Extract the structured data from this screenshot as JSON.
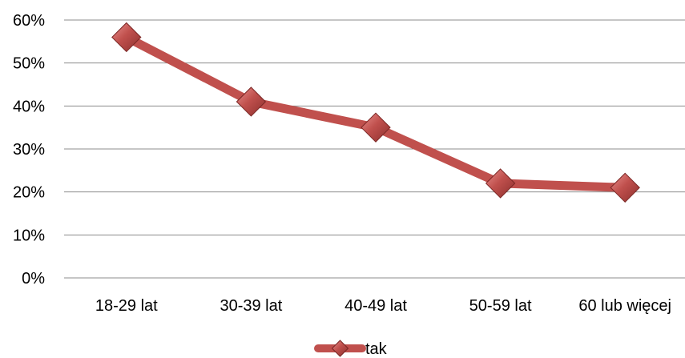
{
  "chart_data": {
    "type": "line",
    "title": "",
    "xlabel": "",
    "ylabel": "",
    "categories": [
      "18-29 lat",
      "30-39 lat",
      "40-49 lat",
      "50-59 lat",
      "60 lub więcej"
    ],
    "series": [
      {
        "name": "tak",
        "values": [
          0.56,
          0.41,
          0.35,
          0.22,
          0.21
        ],
        "color": "#c0504d"
      }
    ],
    "ylim": [
      0,
      0.6
    ],
    "yticks": [
      {
        "value": 0.0,
        "label": "0%"
      },
      {
        "value": 0.1,
        "label": "10%"
      },
      {
        "value": 0.2,
        "label": "20%"
      },
      {
        "value": 0.3,
        "label": "30%"
      },
      {
        "value": 0.4,
        "label": "40%"
      },
      {
        "value": 0.5,
        "label": "50%"
      },
      {
        "value": 0.6,
        "label": "60%"
      }
    ],
    "grid": true,
    "legend": {
      "position": "bottom",
      "label": "tak"
    },
    "marker": "diamond"
  }
}
